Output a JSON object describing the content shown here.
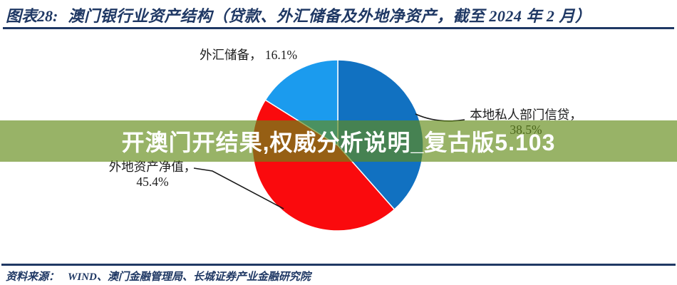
{
  "header": {
    "figure_label": "图表28:",
    "title": "澳门银行业资产结构（贷款、外汇储备及外地净资产，截至 2024 年 2 月）"
  },
  "chart_data": {
    "type": "pie",
    "title": "澳门银行业资产结构（贷款、外汇储备及外地净资产，截至 2024 年 2 月）",
    "unit": "%",
    "direction": "clockwise",
    "start_angle_deg": 0,
    "slices": [
      {
        "id": "credit",
        "label": "本地私人部门信贷",
        "value": 38.5,
        "color": "#1171C1"
      },
      {
        "id": "nfa",
        "label": "外地资产净值",
        "value": 45.4,
        "color": "#FA0A0D"
      },
      {
        "id": "reserve",
        "label": "外汇储备",
        "value": 16.1,
        "color": "#1B9BEE"
      }
    ]
  },
  "callouts": {
    "reserve": "外汇储备， 16.1%",
    "credit_line1": "本地私人部门信贷，",
    "credit_line2": "38.5%",
    "nfa_line1": "外地资产净值，",
    "nfa_line2": "45.4%"
  },
  "watermark": {
    "text": "开澳门开结果,权威分析说明_复古版5.103",
    "background_color": "#628B19",
    "text_color": "#FFFFFF"
  },
  "footer": {
    "source_label": "资料来源：",
    "source_text": "WIND、澳门金融管理局、长城证券产业金融研究院"
  },
  "colors": {
    "accent_navy": "#1F3864",
    "slice_credit_blue": "#1171C1",
    "slice_nfa_red": "#FA0A0D",
    "slice_reserve_lightblue": "#1B9BEE",
    "leader_line": "#1A1A1A"
  }
}
